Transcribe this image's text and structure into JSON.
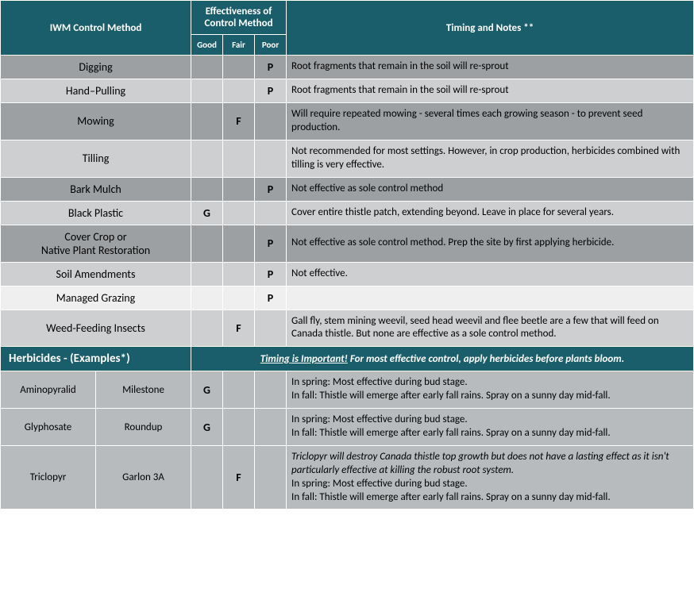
{
  "header": {
    "col_method": "IWM Control Method",
    "col_eff": "Effectiveness of Control Method",
    "col_notes": "Timing and Notes **",
    "eff_good": "Good",
    "eff_fair": "Fair",
    "eff_poor": "Poor"
  },
  "rows": [
    {
      "method": "Digging",
      "good": "",
      "fair": "",
      "poor": "P",
      "notes": "Root fragments that remain in the soil will re-sprout",
      "cls": "row-a"
    },
    {
      "method": "Hand–Pulling",
      "good": "",
      "fair": "",
      "poor": "P",
      "notes": "Root fragments that remain in the soil will re-sprout",
      "cls": "row-b"
    },
    {
      "method": "Mowing",
      "good": "",
      "fair": "F",
      "poor": "",
      "notes": "Will require repeated mowing - several times each growing season - to prevent seed production.",
      "cls": "row-a"
    },
    {
      "method": "Tilling",
      "good": "",
      "fair": "",
      "poor": "",
      "notes": "Not recommended for most settings. However, in crop production, herbicides combined with tilling is very effective.",
      "cls": "row-b"
    },
    {
      "method": "Bark Mulch",
      "good": "",
      "fair": "",
      "poor": "P",
      "notes": "Not effective as sole control method",
      "cls": "row-a"
    },
    {
      "method": "Black Plastic",
      "good": "G",
      "fair": "",
      "poor": "",
      "notes": "Cover entire thistle patch, extending beyond. Leave in place for several years.",
      "cls": "row-b"
    },
    {
      "method": "Cover Crop or\nNative Plant Restoration",
      "good": "",
      "fair": "",
      "poor": "P",
      "notes": "Not effective as sole control method. Prep the site by first applying herbicide.",
      "cls": "row-a"
    },
    {
      "method": "Soil Amendments",
      "good": "",
      "fair": "",
      "poor": "P",
      "notes": "Not effective.",
      "cls": "row-b"
    },
    {
      "method": "Managed Grazing",
      "good": "",
      "fair": "",
      "poor": "P",
      "notes": "",
      "cls": "row-c"
    },
    {
      "method": "Weed-Feeding Insects",
      "good": "",
      "fair": "F",
      "poor": "",
      "notes": "Gall fly, stem mining weevil, seed head weevil and flee beetle are a few that will feed on Canada thistle. But none are effective as a sole control method.",
      "cls": "row-b"
    }
  ],
  "herb_header": {
    "title": "Herbicides - (Examples*)",
    "note_u": "Timing is Important!",
    "note_rest": "  For most effective control, apply herbicides before plants bloom."
  },
  "herb_rows": [
    {
      "generic": "Aminopyralid",
      "trade": "Milestone",
      "good": "G",
      "fair": "",
      "poor": "",
      "notes": "In spring:  Most effective during bud stage.\nIn fall:  Thistle will emerge after early fall rains. Spray on a sunny day mid-fall."
    },
    {
      "generic": "Glyphosate",
      "trade": "Roundup",
      "good": "G",
      "fair": "",
      "poor": "",
      "notes": "In spring:  Most effective during bud stage.\nIn fall:  Thistle will emerge after early fall rains. Spray on a sunny day mid-fall."
    },
    {
      "generic": "Triclopyr",
      "trade": "Garlon 3A",
      "good": "",
      "fair": "F",
      "poor": "",
      "notes_italic": "Triclopyr will destroy Canada thistle top growth but does not have a lasting effect as it isn't particularly effective at killing the robust root system.",
      "notes": "In spring:  Most effective during bud stage.\nIn fall:  Thistle will emerge after early fall rains. Spray on a sunny day mid-fall."
    }
  ],
  "colors": {
    "header_bg": "#1a5e6b",
    "row_a": "#9da0a3",
    "row_b": "#cdcfd1",
    "row_c": "#efefef",
    "herb_row": "#b8bbbe",
    "border": "#ffffff"
  }
}
